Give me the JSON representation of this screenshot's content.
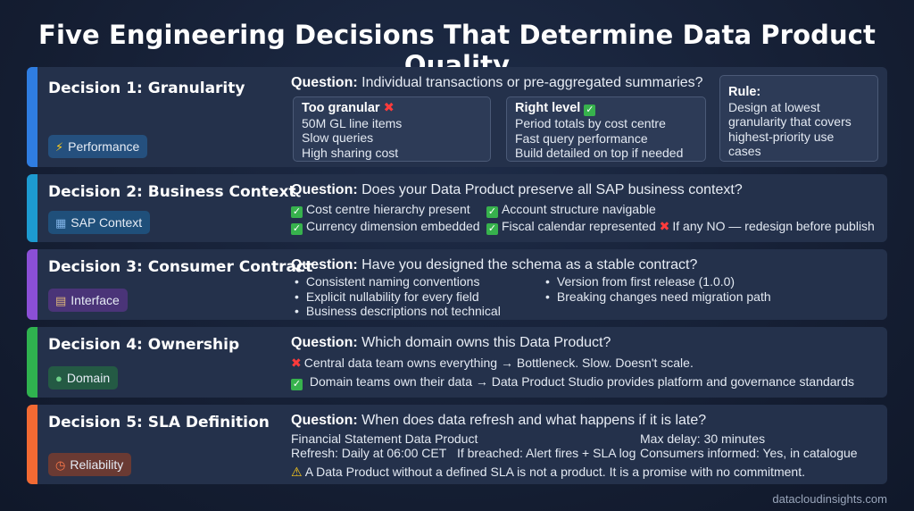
{
  "title": "Five Engineering Decisions That Determine Data Product Quality",
  "colors": {
    "blue": "#2f7de1",
    "teal": "#1d9bd1",
    "purple": "#8b4fd6",
    "green": "#2fb24f",
    "orange": "#f26a33"
  },
  "decisions": [
    {
      "name": "Decision 1: Granularity",
      "tag": "Performance",
      "tag_icon": "lightning-icon",
      "question_label": "Question:",
      "question": " Individual transactions or pre-aggregated summaries?",
      "too_granular": {
        "heading": "Too granular",
        "lines": [
          "50M GL line items",
          "Slow queries",
          "High sharing cost"
        ]
      },
      "right_level": {
        "heading": "Right level",
        "lines": [
          "Period totals by cost centre",
          "Fast query performance",
          "Build detailed on top if needed"
        ]
      },
      "rule": {
        "heading": "Rule:",
        "lines": [
          "Design at lowest",
          "granularity that covers",
          "highest-priority use cases"
        ]
      }
    },
    {
      "name": "Decision 2: Business Context",
      "tag": "SAP Context",
      "tag_icon": "building-icon",
      "question_label": "Question:",
      "question": " Does your Data Product preserve all SAP business context?",
      "checks": [
        "Cost centre hierarchy present",
        "Account structure navigable",
        "Currency dimension embedded",
        "Fiscal calendar represented"
      ],
      "warning": "If any NO — redesign before publish"
    },
    {
      "name": "Decision 3: Consumer Contract",
      "tag": "Interface",
      "tag_icon": "clipboard-icon",
      "question_label": "Question:",
      "question": " Have you designed the schema as a stable contract?",
      "bullets_left": [
        "Consistent naming conventions",
        "Explicit nullability for every field",
        "Business descriptions not technical"
      ],
      "bullets_right": [
        "Version from first release (1.0.0)",
        "Breaking changes need migration path"
      ]
    },
    {
      "name": "Decision 4: Ownership",
      "tag": "Domain",
      "tag_icon": "person-icon",
      "question_label": "Question:",
      "question": " Which domain owns this Data Product?",
      "bad": "Central data team owns everything → Bottleneck. Slow. Doesn't scale.",
      "good": "Domain teams own their data → Data Product Studio provides platform and governance standards"
    },
    {
      "name": "Decision 5: SLA Definition",
      "tag": "Reliability",
      "tag_icon": "clock-icon",
      "question_label": "Question:",
      "question": " When does data refresh and what happens if it is late?",
      "product": "Financial Statement Data Product",
      "refresh": "Refresh: Daily at 06:00 CET",
      "breached": "If breached: Alert fires + SLA log",
      "max_delay": "Max delay: 30 minutes",
      "consumers": "Consumers informed: Yes, in catalogue",
      "warning": "A Data Product without a defined SLA is not a product. It is a promise with no commitment."
    }
  ],
  "footer": "datacloudinsights.com"
}
